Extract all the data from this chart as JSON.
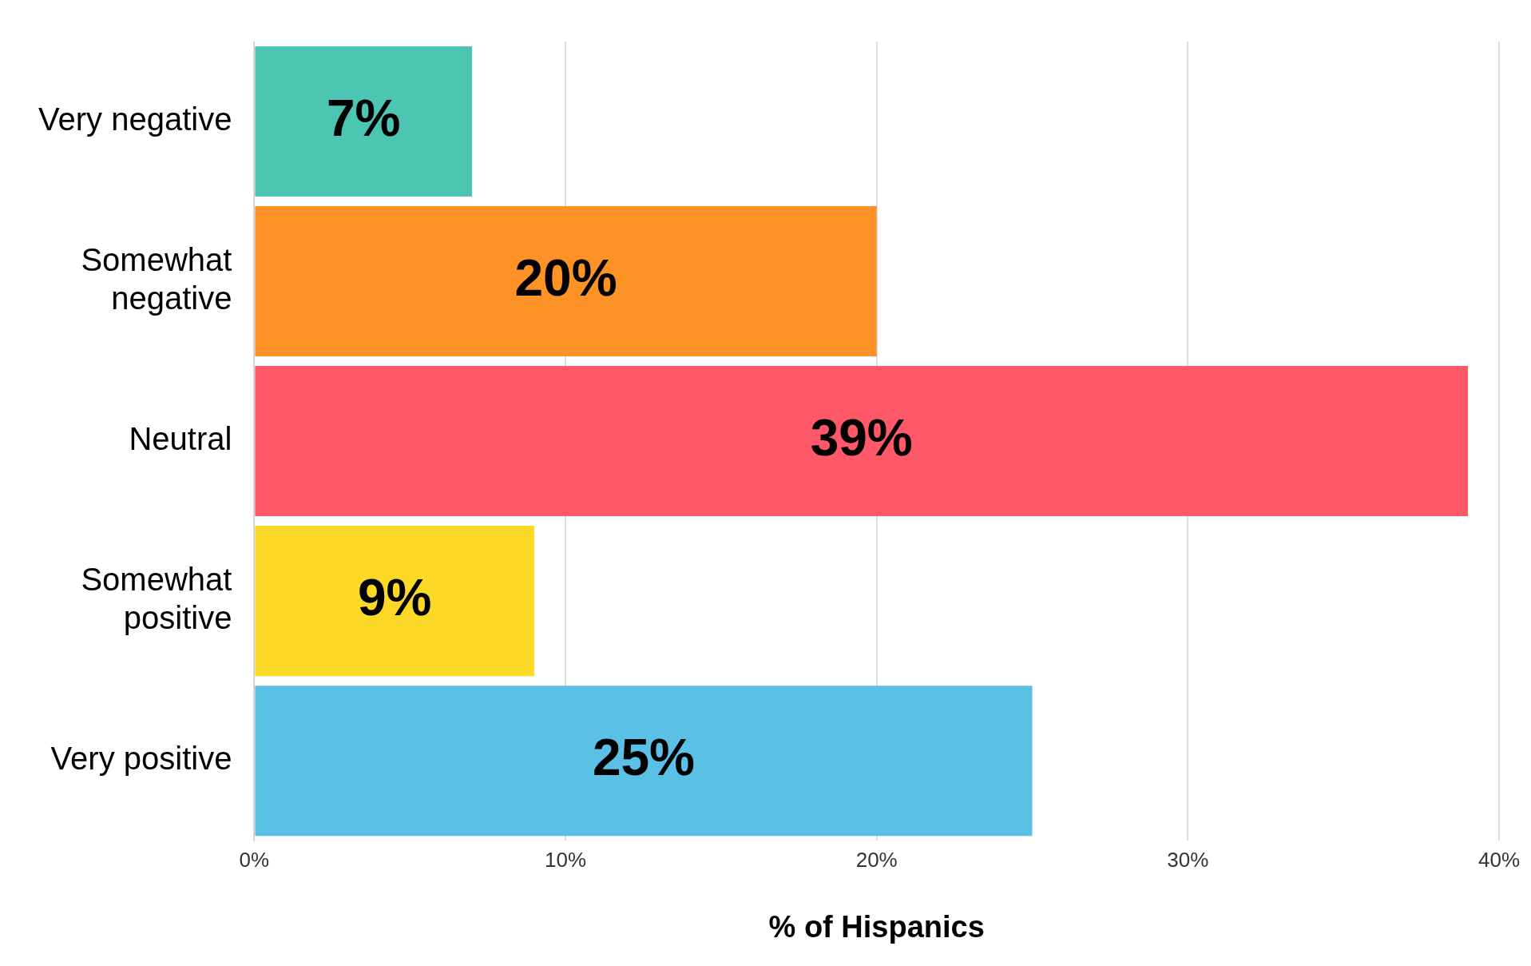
{
  "chart_data": {
    "type": "bar",
    "orientation": "horizontal",
    "xlabel": "% of Hispanics",
    "categories": [
      "Very negative",
      "Somewhat negative",
      "Neutral",
      "Somewhat positive",
      "Very positive"
    ],
    "values": [
      7,
      20,
      39,
      9,
      25
    ],
    "value_labels": [
      "7%",
      "20%",
      "39%",
      "9%",
      "25%"
    ],
    "colors": [
      "#4cc5b2",
      "#fd9326",
      "#fe5869",
      "#fcd926",
      "#5bc0e6"
    ],
    "xlim": [
      0,
      40
    ],
    "xticks": [
      {
        "value": 0,
        "label": "0%"
      },
      {
        "value": 10,
        "label": "10%"
      },
      {
        "value": 20,
        "label": "20%"
      },
      {
        "value": 30,
        "label": "30%"
      },
      {
        "value": 40,
        "label": "40%"
      }
    ],
    "grid": "x",
    "legend": false
  }
}
